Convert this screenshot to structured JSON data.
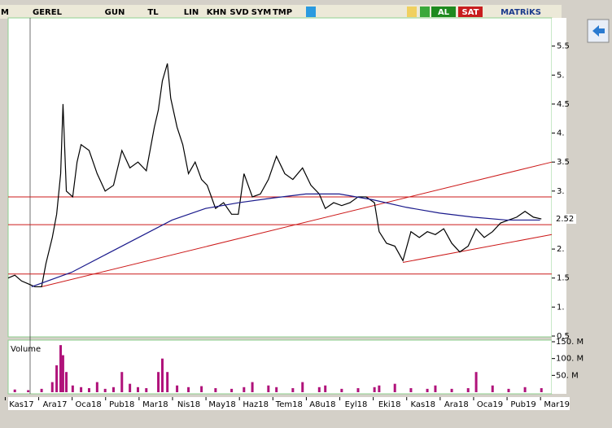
{
  "toolbar": {
    "items": [
      "M",
      "GEREL",
      "GUN",
      "TL",
      "LIN",
      "KHN",
      "SVD",
      "SYM",
      "TMP",
      "AL",
      "SAT",
      "MATRiKS"
    ]
  },
  "chart_data": [
    {
      "type": "line",
      "xlim": [
        -0.4,
        15.85
      ],
      "ylim": [
        0.5,
        6
      ],
      "xticks": [
        {
          "value": 0,
          "label": "Kas17"
        },
        {
          "value": 1,
          "label": "Ara17"
        },
        {
          "value": 2,
          "label": "Oca18"
        },
        {
          "value": 3,
          "label": "Pub18"
        },
        {
          "value": 4,
          "label": "Mar18"
        },
        {
          "value": 5,
          "label": "Nis18"
        },
        {
          "value": 6,
          "label": "May18"
        },
        {
          "value": 7,
          "label": "Haz18"
        },
        {
          "value": 8,
          "label": "Tem18"
        },
        {
          "value": 9,
          "label": "A8u18"
        },
        {
          "value": 10,
          "label": "Eyl18"
        },
        {
          "value": 11,
          "label": "Eki18"
        },
        {
          "value": 12,
          "label": "Kas18"
        },
        {
          "value": 13,
          "label": "Ara18"
        },
        {
          "value": 14,
          "label": "Oca19"
        },
        {
          "value": 15,
          "label": "Pub19"
        },
        {
          "value": 16,
          "label": "Mar19"
        }
      ],
      "yticks": [
        0.5,
        {
          "value": 1,
          "label": "1."
        },
        1.5,
        {
          "value": 2,
          "label": "2."
        },
        {
          "value": 3,
          "label": "3."
        },
        3.5,
        {
          "value": 4,
          "label": "4."
        },
        4.5,
        {
          "value": 5,
          "label": "5."
        },
        5.5
      ],
      "last_value": 2.52,
      "series": [
        {
          "color": "#000000",
          "x": [
            -0.4,
            -0.2,
            0,
            0.2,
            0.4,
            0.6,
            0.73,
            0.92,
            1.05,
            1.17,
            1.24,
            1.34,
            1.53,
            1.66,
            1.78,
            2.02,
            2.26,
            2.5,
            2.75,
            3.0,
            3.24,
            3.48,
            3.73,
            3.97,
            4.09,
            4.21,
            4.36,
            4.46,
            4.65,
            4.82,
            4.99,
            5.19,
            5.38,
            5.55,
            5.8,
            6.04,
            6.28,
            6.48,
            6.65,
            6.9,
            7.14,
            7.38,
            7.62,
            7.87,
            8.11,
            8.4,
            8.65,
            8.9,
            9.08,
            9.33,
            9.57,
            9.82,
            10.06,
            10.3,
            10.55,
            10.69,
            10.91,
            11.16,
            11.4,
            11.64,
            11.89,
            12.13,
            12.37,
            12.62,
            12.86,
            13.1,
            13.35,
            13.59,
            13.83,
            14.08,
            14.32,
            14.56,
            14.8,
            15.05,
            15.3,
            15.54
          ],
          "values": [
            1.5,
            1.55,
            1.45,
            1.4,
            1.35,
            1.35,
            1.75,
            2.2,
            2.6,
            3.3,
            4.5,
            3.0,
            2.9,
            3.5,
            3.8,
            3.7,
            3.3,
            3.0,
            3.1,
            3.7,
            3.4,
            3.5,
            3.35,
            4.1,
            4.4,
            4.9,
            5.2,
            4.6,
            4.1,
            3.8,
            3.3,
            3.5,
            3.2,
            3.1,
            2.7,
            2.8,
            2.6,
            2.6,
            3.3,
            2.9,
            2.95,
            3.2,
            3.6,
            3.3,
            3.2,
            3.4,
            3.1,
            2.95,
            2.7,
            2.8,
            2.75,
            2.8,
            2.9,
            2.9,
            2.8,
            2.3,
            2.1,
            2.05,
            1.8,
            2.3,
            2.2,
            2.3,
            2.25,
            2.35,
            2.1,
            1.95,
            2.05,
            2.35,
            2.2,
            2.3,
            2.45,
            2.5,
            2.55,
            2.65,
            2.55,
            2.52
          ]
        },
        {
          "color": "#1a1a8c",
          "x": [
            0.3,
            1.5,
            2.5,
            3.5,
            4.5,
            5.5,
            6.5,
            7.5,
            8.5,
            9.5,
            10.5,
            11.5,
            12.5,
            13.5,
            14.5,
            15.5
          ],
          "values": [
            1.35,
            1.6,
            1.9,
            2.2,
            2.5,
            2.7,
            2.8,
            2.88,
            2.95,
            2.95,
            2.85,
            2.72,
            2.62,
            2.55,
            2.5,
            2.5
          ]
        }
      ],
      "trendlines": [
        {
          "color": "#cc1a1a",
          "x": [
            -0.4,
            15.85
          ],
          "values": [
            2.9,
            2.9
          ]
        },
        {
          "color": "#cc1a1a",
          "x": [
            -0.4,
            15.85
          ],
          "values": [
            2.42,
            2.42
          ]
        },
        {
          "color": "#cc1a1a",
          "x": [
            -0.4,
            15.85
          ],
          "values": [
            1.57,
            1.57
          ]
        },
        {
          "color": "#cc1a1a",
          "x": [
            0.6,
            15.85
          ],
          "values": [
            1.35,
            3.5
          ]
        },
        {
          "color": "#cc1a1a",
          "x": [
            11.4,
            15.85
          ],
          "values": [
            1.77,
            2.25
          ]
        }
      ]
    },
    {
      "type": "bar",
      "title": "Volume",
      "color": "#b0127a",
      "xlim": [
        -0.4,
        15.85
      ],
      "ylim": [
        0,
        150
      ],
      "yticks": [
        {
          "value": 50,
          "label": "50. M"
        },
        {
          "value": 100,
          "label": "100. M"
        },
        {
          "value": 150,
          "label": "150. M"
        }
      ],
      "x": [
        -0.2,
        0.2,
        0.6,
        0.92,
        1.05,
        1.17,
        1.24,
        1.34,
        1.53,
        1.78,
        2.02,
        2.26,
        2.5,
        2.75,
        3.0,
        3.24,
        3.48,
        3.73,
        4.09,
        4.21,
        4.36,
        4.65,
        4.99,
        5.38,
        5.8,
        6.28,
        6.65,
        6.9,
        7.38,
        7.62,
        8.11,
        8.4,
        8.9,
        9.08,
        9.57,
        10.06,
        10.55,
        10.69,
        11.16,
        11.64,
        12.13,
        12.37,
        12.86,
        13.35,
        13.59,
        14.08,
        14.56,
        15.05,
        15.54
      ],
      "values": [
        8,
        6,
        10,
        30,
        80,
        140,
        110,
        60,
        20,
        15,
        12,
        30,
        10,
        15,
        60,
        25,
        15,
        12,
        60,
        100,
        60,
        20,
        15,
        18,
        12,
        10,
        15,
        30,
        20,
        15,
        12,
        30,
        15,
        20,
        10,
        12,
        15,
        20,
        25,
        12,
        10,
        20,
        10,
        12,
        60,
        20,
        10,
        15,
        12
      ]
    }
  ]
}
